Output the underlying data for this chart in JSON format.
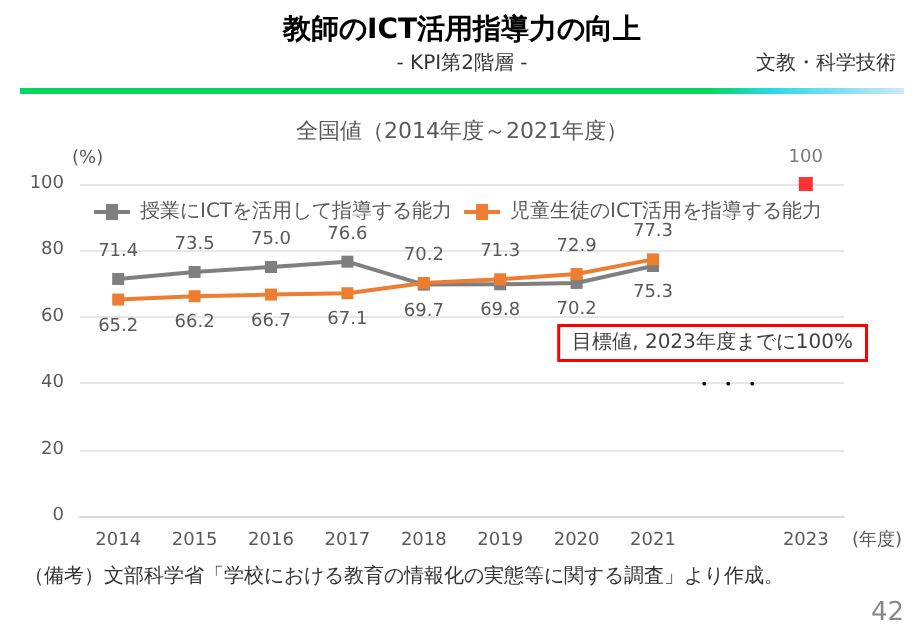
{
  "chart_data": {
    "type": "line",
    "title": "教師のICT活用指導力の向上",
    "subtitle": "- KPI第2階層 -",
    "xlabel": "(年度)",
    "ylabel": "(%)",
    "categories": [
      "2014",
      "2015",
      "2016",
      "2017",
      "2018",
      "2019",
      "2020",
      "2021",
      null,
      "2023"
    ],
    "series": [
      {
        "name": "授業にICTを活用して指導する能力",
        "color": "#7f7f7f",
        "values": [
          71.4,
          73.5,
          75.0,
          76.6,
          69.7,
          69.8,
          70.2,
          75.3,
          null,
          null
        ],
        "value_labels": [
          "71.4",
          "73.5",
          "75.0",
          "76.6",
          "69.7",
          "69.8",
          "70.2",
          "75.3",
          null,
          null
        ]
      },
      {
        "name": "児童生徒のICT活用を指導する能力",
        "color": "#ed7d31",
        "values": [
          65.2,
          66.2,
          66.7,
          67.1,
          70.2,
          71.3,
          72.9,
          77.3,
          null,
          null
        ],
        "value_labels": [
          "65.2",
          "66.2",
          "66.7",
          "67.1",
          "70.2",
          "71.3",
          "72.9",
          "77.3",
          null,
          null
        ]
      },
      {
        "type": "scatter",
        "color": "#ff0000",
        "values": [
          null,
          null,
          null,
          null,
          null,
          null,
          null,
          null,
          null,
          100
        ],
        "value_labels": [
          null,
          null,
          null,
          null,
          null,
          null,
          null,
          null,
          null,
          "100"
        ]
      }
    ],
    "ylim": [
      0,
      100
    ],
    "yticks": [
      0,
      20,
      40,
      60,
      80,
      100
    ],
    "grid": "y",
    "legend": "top left",
    "marker": "square",
    "line_style": "solid",
    "annotations": [
      "文教・科学技術",
      "全国値（2014年度～2021年度）",
      "目標値, 2023年度までに100%",
      "・・・",
      "（備考）文部科学省「学校における教育の情報化の実態等に関する調査」より作成。",
      "42"
    ]
  }
}
